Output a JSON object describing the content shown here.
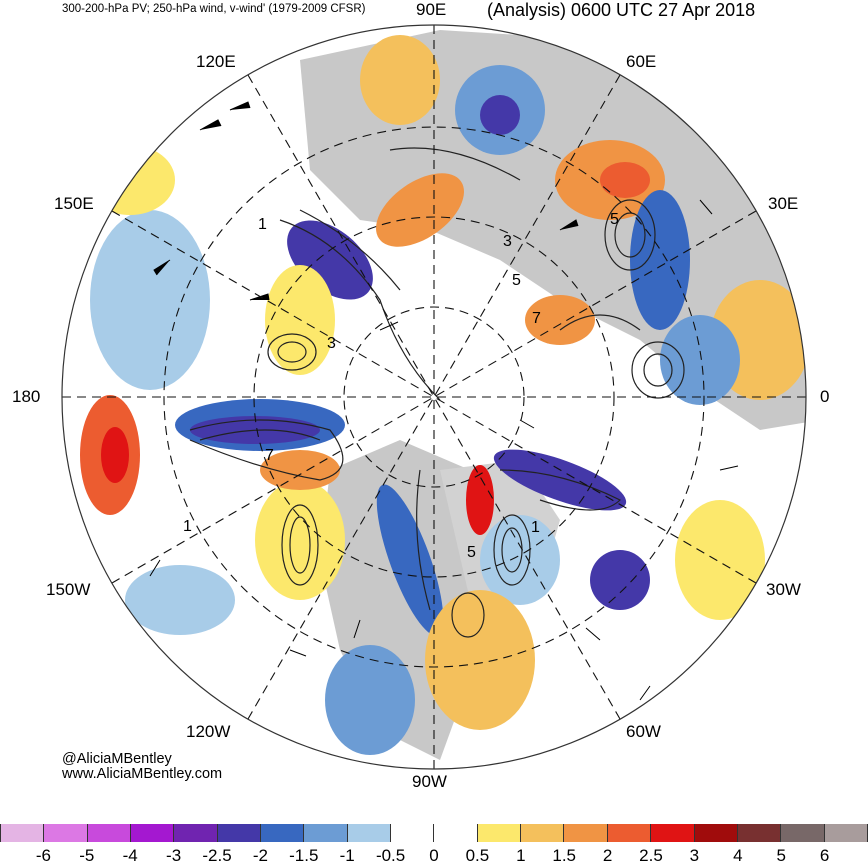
{
  "header": {
    "left_title": "300-200-hPa PV; 250-hPa wind, v-wind' (1979-2009 CFSR)",
    "right_title": "(Analysis) 0600 UTC 27 Apr 2018"
  },
  "map": {
    "projection": "polar stereographic (north pole)",
    "longitude_labels": {
      "lon_90e": "90E",
      "lon_60e": "60E",
      "lon_30e": "30E",
      "lon_0": "0",
      "lon_30w": "30W",
      "lon_60w": "60W",
      "lon_90w": "90W",
      "lon_120w": "120W",
      "lon_150w": "150W",
      "lon_180": "180",
      "lon_150e": "150E",
      "lon_120e": "120E"
    },
    "pv_contour_labels": [
      "1",
      "3",
      "5",
      "7",
      "1",
      "5",
      "3",
      "5",
      "7",
      "1"
    ]
  },
  "credits": {
    "handle": "@AliciaMBentley",
    "website": "www.AliciaMBentley.com"
  },
  "colorbar": {
    "tick_labels": [
      "-6",
      "-5",
      "-4",
      "-3",
      "-2.5",
      "-2",
      "-1.5",
      "-1",
      "-0.5",
      "0",
      "0.5",
      "1",
      "1.5",
      "2",
      "2.5",
      "3",
      "4",
      "5",
      "6"
    ],
    "colors": [
      "#e4b4e4",
      "#dc78e4",
      "#c84adc",
      "#a418d0",
      "#7024b0",
      "#4438a8",
      "#3868c0",
      "#6c9cd4",
      "#a8cce8",
      "#ffffff",
      "#ffffff",
      "#fce86c",
      "#f4c05c",
      "#f09444",
      "#ec5c30",
      "#e01414",
      "#a00c0c",
      "#783030",
      "#786868",
      "#a89c9c"
    ]
  }
}
